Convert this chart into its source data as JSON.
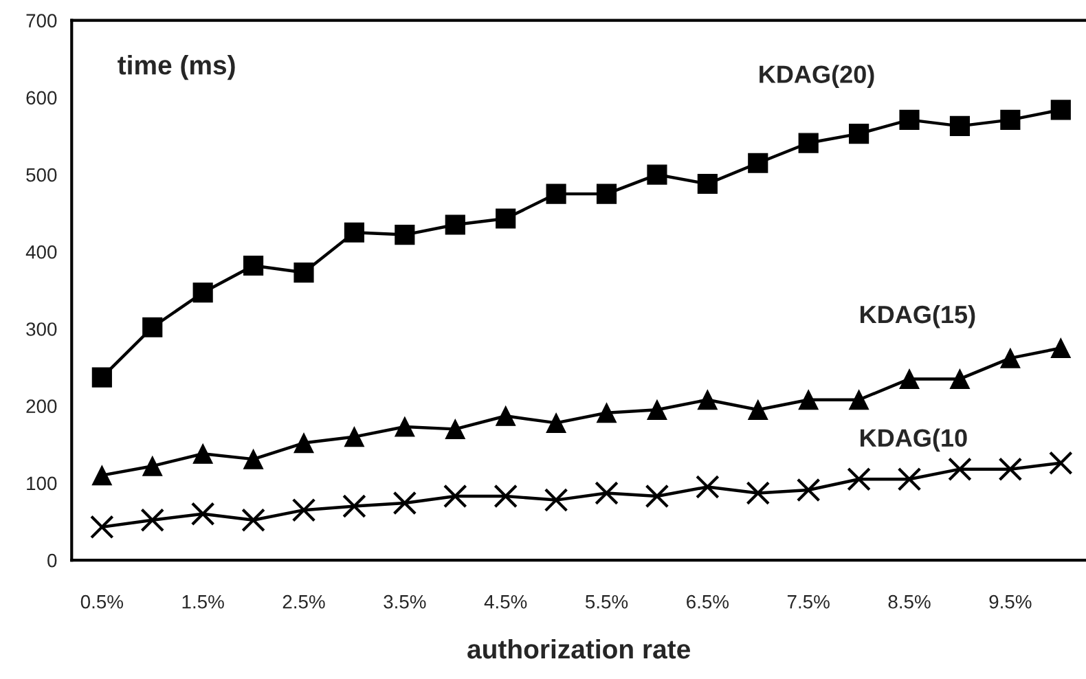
{
  "chart_data": {
    "type": "line",
    "xlabel": "authorization rate",
    "ylabel": "time (ms)",
    "categories": [
      "0.5%",
      null,
      "1.5%",
      null,
      "2.5%",
      null,
      "3.5%",
      null,
      "4.5%",
      null,
      "5.5%",
      null,
      "6.5%",
      null,
      "7.5%",
      null,
      "8.5%",
      null,
      "9.5%",
      null
    ],
    "series": [
      {
        "name": "KDAG(20)",
        "color": "#000000",
        "marker": "square",
        "values": [
          237,
          302,
          347,
          382,
          373,
          425,
          422,
          435,
          443,
          475,
          475,
          500,
          488,
          515,
          541,
          553,
          571,
          563,
          571,
          584
        ]
      },
      {
        "name": "KDAG(15)",
        "color": "#000000",
        "marker": "triangle",
        "values": [
          110,
          122,
          138,
          131,
          152,
          160,
          173,
          170,
          187,
          178,
          191,
          195,
          208,
          195,
          208,
          208,
          235,
          235,
          262,
          275
        ]
      },
      {
        "name": "KDAG(10",
        "color": "#000000",
        "marker": "cross",
        "values": [
          43,
          52,
          60,
          52,
          65,
          70,
          74,
          83,
          83,
          78,
          87,
          83,
          95,
          87,
          91,
          105,
          105,
          118,
          118,
          126
        ]
      }
    ],
    "ylim": [
      0,
      700
    ],
    "yticks": [
      0,
      100,
      200,
      300,
      400,
      500,
      600,
      700
    ],
    "grid": false,
    "legend": false,
    "line_style": "solid"
  }
}
